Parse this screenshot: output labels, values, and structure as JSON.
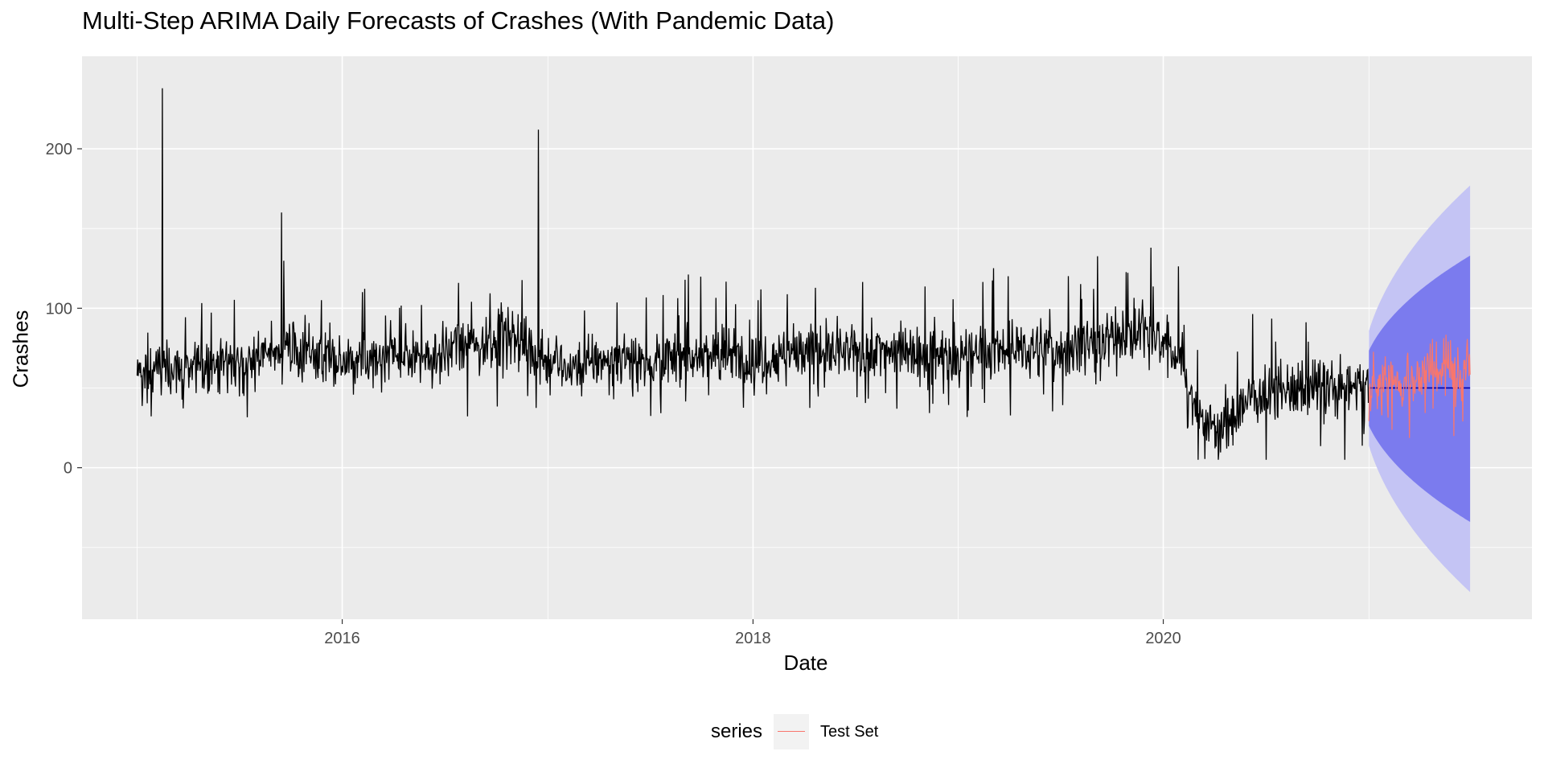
{
  "chart_data": {
    "type": "line",
    "title": "Multi-Step ARIMA Daily Forecasts of Crashes (With Pandemic Data)",
    "xlabel": "Date",
    "ylabel": "Crashes",
    "x_ticks": [
      "2016",
      "2018",
      "2020"
    ],
    "y_ticks": [
      "0",
      "100",
      "200"
    ],
    "xlim": [
      "2014-09-25",
      "2021-10-18"
    ],
    "ylim": [
      -95,
      258
    ],
    "grid": true,
    "legend": {
      "position": "bottom",
      "title": "series",
      "entries": [
        "Test Set"
      ]
    },
    "colors": {
      "panel_background": "#ebebeb",
      "grid": "#ffffff",
      "actual": "#000000",
      "test_set": "#f8766d",
      "point_forecast": "#0000aa",
      "interval_80": "#7b7bee",
      "interval_95": "#c4c4f4"
    },
    "series": [
      {
        "x": [
          "2015-01-01",
          "2015-02-01",
          "2015-03-01",
          "2015-04-01",
          "2015-05-01",
          "2015-06-01",
          "2015-07-01",
          "2015-08-01",
          "2015-09-01",
          "2015-10-01",
          "2015-11-01",
          "2015-12-01",
          "2016-01-01",
          "2016-02-01",
          "2016-03-01",
          "2016-04-01",
          "2016-05-01",
          "2016-06-01",
          "2016-07-01",
          "2016-08-01",
          "2016-09-01",
          "2016-10-01",
          "2016-11-01",
          "2016-12-01",
          "2017-01-01",
          "2017-02-01",
          "2017-03-01",
          "2017-04-01",
          "2017-05-01",
          "2017-06-01",
          "2017-07-01",
          "2017-08-01",
          "2017-09-01",
          "2017-10-01",
          "2017-11-01",
          "2017-12-01",
          "2018-01-01",
          "2018-02-01",
          "2018-03-01",
          "2018-04-01",
          "2018-05-01",
          "2018-06-01",
          "2018-07-01",
          "2018-08-01",
          "2018-09-01",
          "2018-10-01",
          "2018-11-01",
          "2018-12-01",
          "2019-01-01",
          "2019-02-01",
          "2019-03-01",
          "2019-04-01",
          "2019-05-01",
          "2019-06-01",
          "2019-07-01",
          "2019-08-01",
          "2019-09-01",
          "2019-10-01",
          "2019-11-01",
          "2019-12-01",
          "2020-01-01",
          "2020-02-01",
          "2020-03-01",
          "2020-04-01",
          "2020-05-01",
          "2020-06-01",
          "2020-07-01",
          "2020-08-01",
          "2020-09-01",
          "2020-10-01",
          "2020-11-01",
          "2020-12-01"
        ],
        "values": [
          60,
          62,
          63,
          65,
          64,
          68,
          66,
          70,
          74,
          76,
          73,
          71,
          65,
          66,
          67,
          70,
          72,
          70,
          74,
          76,
          78,
          82,
          85,
          75,
          64,
          63,
          65,
          68,
          67,
          66,
          70,
          68,
          70,
          72,
          73,
          70,
          68,
          70,
          72,
          73,
          74,
          71,
          72,
          74,
          75,
          76,
          72,
          70,
          70,
          71,
          73,
          74,
          75,
          74,
          73,
          78,
          80,
          82,
          84,
          86,
          76,
          72,
          35,
          25,
          30,
          45,
          48,
          50,
          48,
          52,
          50,
          52
        ]
      },
      {
        "name": "Test Set",
        "x": [
          "2021-01-01",
          "2021-01-15",
          "2021-02-01",
          "2021-02-15",
          "2021-03-01",
          "2021-03-15",
          "2021-04-01",
          "2021-04-15",
          "2021-05-01",
          "2021-05-15",
          "2021-06-01",
          "2021-06-15"
        ],
        "values": [
          50,
          48,
          52,
          55,
          50,
          58,
          54,
          60,
          56,
          62,
          60,
          64
        ]
      }
    ],
    "spikes": [
      {
        "x": "2015-02-15",
        "y": 238
      },
      {
        "x": "2015-09-15",
        "y": 160
      },
      {
        "x": "2016-12-15",
        "y": 212
      },
      {
        "x": "2019-12-10",
        "y": 138
      }
    ],
    "forecast": {
      "x_start": "2021-01-01",
      "x_end": "2021-06-30",
      "point_forecast": 50,
      "interval_80_end": [
        -34,
        133
      ],
      "interval_95_end": [
        -78,
        177
      ]
    }
  }
}
